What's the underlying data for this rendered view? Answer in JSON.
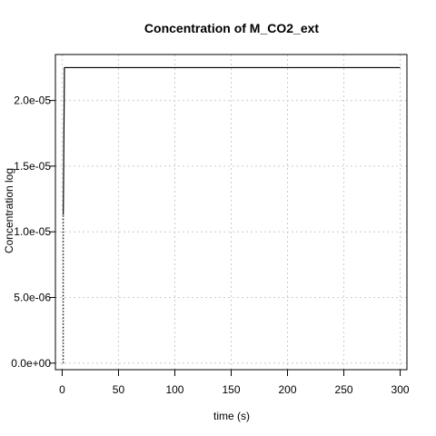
{
  "chart_data": {
    "type": "line",
    "title": "Concentration of M_CO2_ext",
    "xlabel": "time (s)",
    "ylabel": "Concentration log",
    "xlim": [
      -6,
      306
    ],
    "ylim": [
      -5e-07,
      2.35e-05
    ],
    "x_ticks": [
      0,
      50,
      100,
      150,
      200,
      250,
      300
    ],
    "x_tick_labels": [
      "0",
      "50",
      "100",
      "150",
      "200",
      "250",
      "300"
    ],
    "y_ticks": [
      0,
      5e-06,
      1e-05,
      1.5e-05,
      2e-05
    ],
    "y_tick_labels": [
      "0.0e+00",
      "5.0e-06",
      "1.0e-05",
      "1.5e-05",
      "2.0e-05"
    ],
    "grid": true,
    "series": [
      {
        "color": "#000000",
        "x": [
          1,
          1,
          2,
          300
        ],
        "y": [
          1.13e-05,
          1.13e-05,
          2.25e-05,
          2.25e-05
        ]
      },
      {
        "color": "#000000",
        "style": "dotted",
        "x": [
          1,
          1
        ],
        "y": [
          0,
          1.13e-05
        ]
      }
    ]
  }
}
